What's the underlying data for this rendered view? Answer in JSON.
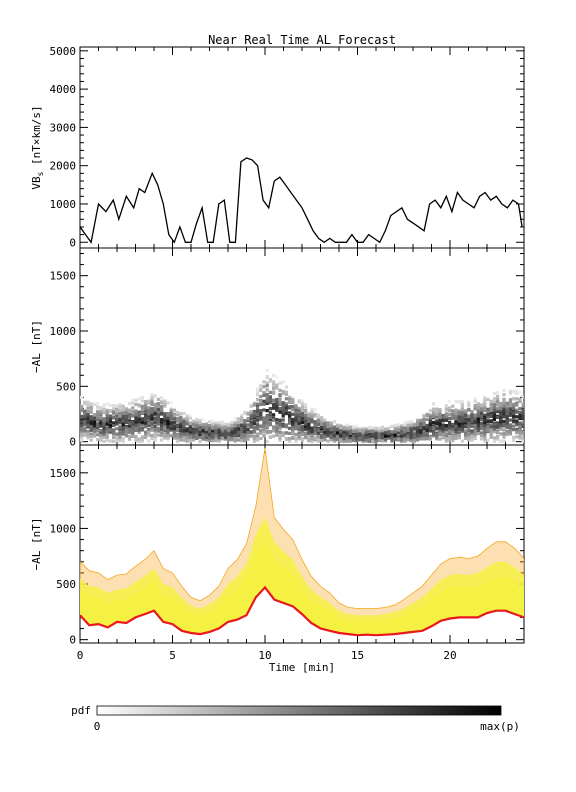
{
  "title": "Near Real Time AL Forecast",
  "colors": {
    "axis": "#000000",
    "line": "#000000",
    "band_outer": "#f5a623",
    "band_inner": "#f4f142",
    "median": "#e8181e",
    "pdf_high": "#000000",
    "pdf_low": "#ffffff"
  },
  "chart_data": [
    {
      "type": "line",
      "panel": "top",
      "ylabel": "VB",
      "ylabel_sub": "s",
      "ylabel_unit": " [nT×km/s]",
      "xlim": [
        0,
        24
      ],
      "ylim": [
        -150,
        5100
      ],
      "yticks": [
        0,
        1000,
        2000,
        3000,
        4000,
        5000
      ],
      "grid": false,
      "x": [
        0,
        0.3,
        0.6,
        1,
        1.4,
        1.8,
        2.1,
        2.5,
        2.9,
        3.2,
        3.5,
        3.9,
        4.2,
        4.5,
        4.8,
        5.1,
        5.4,
        5.7,
        6,
        6.3,
        6.6,
        6.9,
        7.2,
        7.5,
        7.8,
        8.1,
        8.4,
        8.7,
        9,
        9.3,
        9.6,
        9.9,
        10.2,
        10.5,
        10.8,
        11.1,
        11.4,
        11.7,
        12,
        12.3,
        12.6,
        12.9,
        13.2,
        13.5,
        13.8,
        14.1,
        14.4,
        14.7,
        15,
        15.3,
        15.6,
        15.9,
        16.2,
        16.5,
        16.8,
        17.1,
        17.4,
        17.7,
        18,
        18.3,
        18.6,
        18.9,
        19.2,
        19.5,
        19.8,
        20.1,
        20.4,
        20.7,
        21,
        21.3,
        21.6,
        21.9,
        22.2,
        22.5,
        22.8,
        23.1,
        23.4,
        23.7,
        23.9
      ],
      "values": [
        400,
        200,
        0,
        1000,
        800,
        1100,
        600,
        1200,
        900,
        1400,
        1300,
        1800,
        1500,
        1000,
        200,
        0,
        400,
        0,
        0,
        500,
        900,
        0,
        0,
        1000,
        1100,
        0,
        0,
        2100,
        2200,
        2150,
        2000,
        1100,
        900,
        1600,
        1700,
        1500,
        1300,
        1100,
        900,
        600,
        300,
        100,
        0,
        100,
        0,
        0,
        0,
        200,
        0,
        0,
        200,
        100,
        0,
        300,
        700,
        800,
        900,
        600,
        500,
        400,
        300,
        1000,
        1100,
        900,
        1200,
        800,
        1300,
        1100,
        1000,
        900,
        1200,
        1300,
        1100,
        1200,
        1000,
        900,
        1100,
        1000,
        400
      ]
    },
    {
      "type": "heatmap",
      "panel": "middle",
      "ylabel": "−AL [nT]",
      "xlim": [
        0,
        24
      ],
      "ylim": [
        -30,
        1750
      ],
      "yticks": [
        0,
        500,
        1000,
        1500
      ],
      "grid": false,
      "x": [
        0,
        1,
        2,
        3,
        4,
        5,
        6,
        7,
        8,
        9,
        10,
        11,
        12,
        13,
        14,
        15,
        16,
        17,
        18,
        19,
        20,
        21,
        22,
        23,
        24
      ],
      "center": [
        200,
        150,
        160,
        180,
        220,
        150,
        90,
        80,
        70,
        120,
        300,
        240,
        160,
        100,
        70,
        50,
        50,
        60,
        80,
        150,
        160,
        170,
        200,
        230,
        200
      ],
      "spread": [
        220,
        210,
        200,
        230,
        260,
        200,
        140,
        120,
        110,
        200,
        380,
        320,
        220,
        150,
        110,
        90,
        90,
        100,
        130,
        220,
        220,
        230,
        250,
        280,
        250
      ],
      "color_scale": "white (0) to black (max(p))"
    },
    {
      "type": "area",
      "panel": "bottom",
      "ylabel": "−AL [nT]",
      "xlabel": "Time [min]",
      "xlim": [
        0,
        24
      ],
      "ylim": [
        -30,
        1750
      ],
      "xticks": [
        0,
        5,
        10,
        15,
        20
      ],
      "yticks": [
        0,
        500,
        1000,
        1500
      ],
      "grid": false,
      "x": [
        0,
        0.5,
        1,
        1.5,
        2,
        2.5,
        3,
        3.5,
        4,
        4.5,
        5,
        5.5,
        6,
        6.5,
        7,
        7.5,
        8,
        8.5,
        9,
        9.5,
        10,
        10.5,
        11,
        11.5,
        12,
        12.5,
        13,
        13.5,
        14,
        14.5,
        15,
        15.5,
        16,
        16.5,
        17,
        17.5,
        18,
        18.5,
        19,
        19.5,
        20,
        20.5,
        21,
        21.5,
        22,
        22.5,
        23,
        23.5,
        24
      ],
      "series": [
        {
          "values": [
            220,
            130,
            140,
            110,
            160,
            150,
            200,
            230,
            260,
            160,
            140,
            80,
            60,
            50,
            70,
            100,
            160,
            180,
            220,
            380,
            470,
            360,
            330,
            300,
            230,
            150,
            100,
            80,
            60,
            50,
            40,
            45,
            40,
            45,
            50,
            60,
            70,
            80,
            120,
            170,
            190,
            200,
            200,
            200,
            240,
            260,
            260,
            230,
            200
          ]
        },
        {
          "values": [
            450,
            380,
            380,
            320,
            350,
            370,
            420,
            460,
            520,
            400,
            380,
            300,
            230,
            220,
            250,
            300,
            400,
            460,
            560,
            780,
            900,
            700,
            640,
            580,
            460,
            360,
            300,
            260,
            200,
            180,
            170,
            170,
            170,
            180,
            190,
            220,
            260,
            300,
            370,
            440,
            470,
            480,
            470,
            480,
            520,
            560,
            560,
            520,
            460
          ]
        },
        {
          "values": [
            550,
            480,
            470,
            420,
            450,
            460,
            520,
            570,
            640,
            500,
            470,
            380,
            300,
            280,
            320,
            380,
            500,
            570,
            680,
            950,
            1100,
            880,
            790,
            720,
            570,
            450,
            380,
            330,
            260,
            230,
            220,
            220,
            220,
            230,
            250,
            280,
            330,
            380,
            460,
            540,
            580,
            590,
            580,
            600,
            650,
            700,
            700,
            650,
            580
          ]
        },
        {
          "values": [
            700,
            620,
            600,
            540,
            580,
            590,
            660,
            720,
            800,
            640,
            600,
            480,
            380,
            350,
            400,
            480,
            640,
            720,
            860,
            1200,
            1720,
            1100,
            990,
            900,
            720,
            570,
            480,
            420,
            330,
            290,
            280,
            280,
            280,
            290,
            310,
            360,
            420,
            480,
            580,
            680,
            730,
            740,
            730,
            750,
            820,
            880,
            880,
            820,
            730
          ]
        }
      ]
    }
  ],
  "colorbar": {
    "label": "pdf",
    "min_label": "0",
    "max_label": "max(p)"
  }
}
